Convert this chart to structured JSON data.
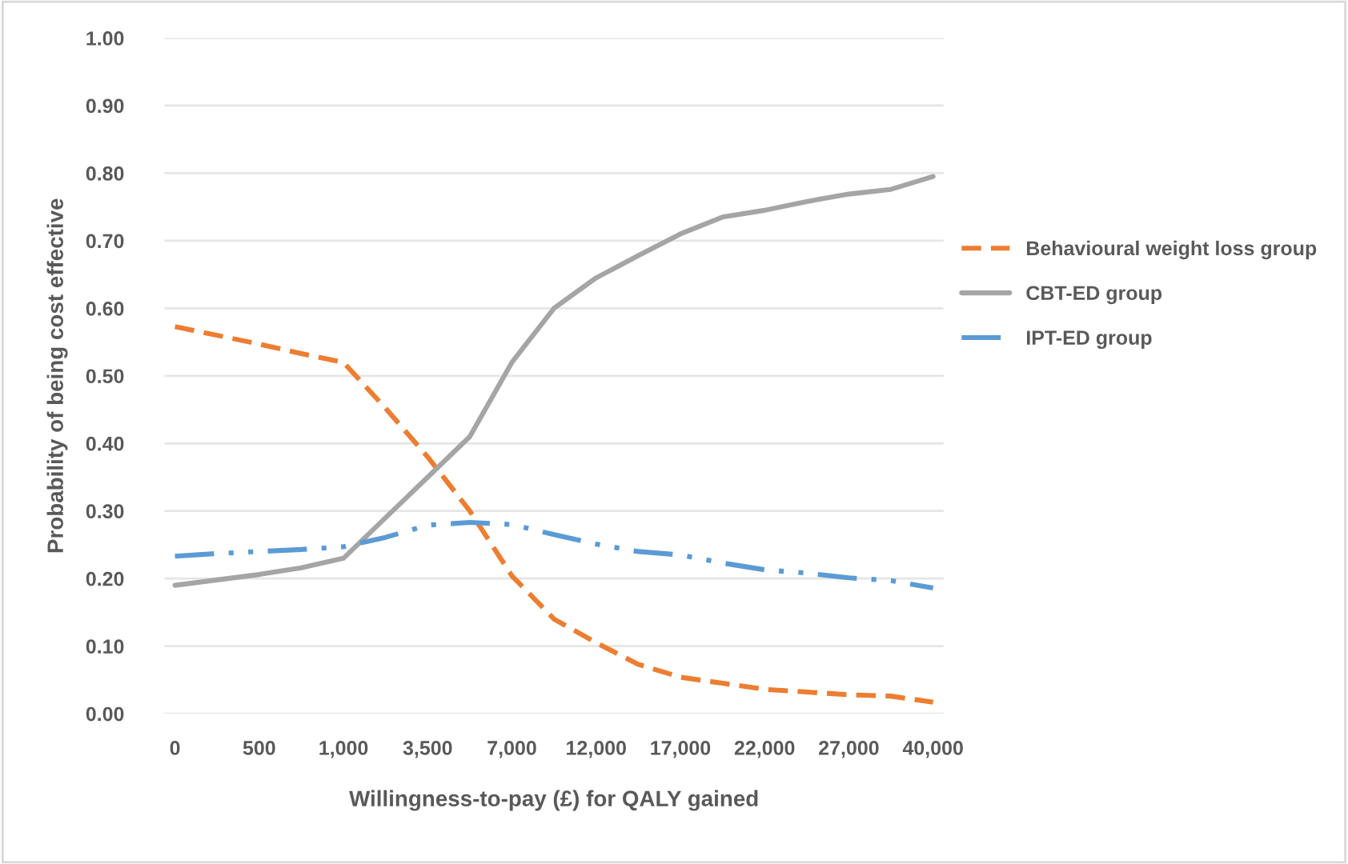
{
  "chart_data": {
    "type": "line",
    "xlabel": "Willingness-to-pay (£) for QALY gained",
    "ylabel": "Probability of being cost effective",
    "categories": [
      "0",
      null,
      "500",
      null,
      "1,000",
      null,
      "3,500",
      null,
      "7,000",
      null,
      "12,000",
      null,
      "17,000",
      null,
      "22,000",
      null,
      "27,000",
      null,
      "40,000"
    ],
    "series": [
      {
        "name": "Behavioural weight loss group",
        "color": "#ed7d31",
        "line_style": "dashed",
        "values": [
          0.573,
          0.56,
          0.547,
          0.533,
          0.52,
          0.452,
          0.38,
          0.3,
          0.204,
          0.14,
          0.105,
          0.073,
          0.054,
          0.045,
          0.036,
          0.032,
          0.028,
          0.026,
          0.017
        ]
      },
      {
        "name": "CBT-ED group",
        "color": "#a5a5a5",
        "line_style": "solid",
        "values": [
          0.19,
          0.198,
          0.206,
          0.216,
          0.23,
          0.29,
          0.35,
          0.41,
          0.52,
          0.6,
          0.645,
          0.678,
          0.71,
          0.735,
          0.745,
          0.758,
          0.769,
          0.776,
          0.795
        ]
      },
      {
        "name": "IPT-ED group",
        "color": "#5b9bd5",
        "line_style": "dashdot",
        "values": [
          0.233,
          0.237,
          0.24,
          0.243,
          0.247,
          0.261,
          0.279,
          0.283,
          0.28,
          0.265,
          0.251,
          0.24,
          0.235,
          0.223,
          0.213,
          0.208,
          0.201,
          0.197,
          0.186
        ]
      }
    ],
    "ylim": [
      0,
      1
    ],
    "yticks": [
      {
        "value": 0,
        "label": "0.00"
      },
      {
        "value": 0.1,
        "label": "0.10"
      },
      {
        "value": 0.2,
        "label": "0.20"
      },
      {
        "value": 0.3,
        "label": "0.30"
      },
      {
        "value": 0.4,
        "label": "0.40"
      },
      {
        "value": 0.5,
        "label": "0.50"
      },
      {
        "value": 0.6,
        "label": "0.60"
      },
      {
        "value": 0.7,
        "label": "0.70"
      },
      {
        "value": 0.8,
        "label": "0.80"
      },
      {
        "value": 0.9,
        "label": "0.90"
      },
      {
        "value": 1,
        "label": "1.00"
      }
    ],
    "grid": "y",
    "legend": "right",
    "marker": "none"
  }
}
